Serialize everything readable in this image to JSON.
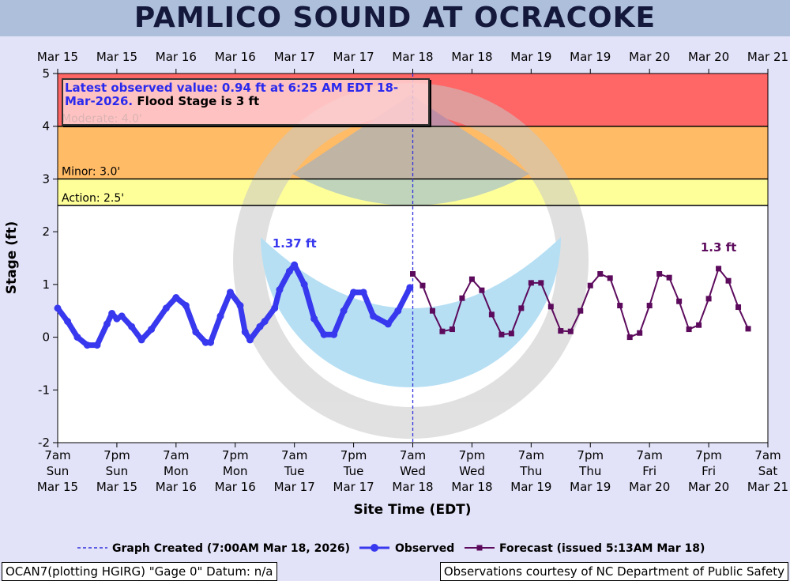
{
  "chart_data": {
    "type": "line",
    "title": "PAMLICO SOUND AT OCRACOKE",
    "y_label": "Stage (ft)",
    "x_label": "Site Time (EDT)",
    "ylim": [
      -2,
      5
    ],
    "yticks": [
      -2,
      -1,
      0,
      1,
      2,
      3,
      4,
      5
    ],
    "xlim": [
      "Mar 15 07:00",
      "Mar 21 07:00"
    ],
    "xticks": [
      {
        "value": "Mar 15 07:00",
        "label": [
          "7am",
          "Sun",
          "Mar 15"
        ]
      },
      {
        "value": "Mar 15 19:00",
        "label": [
          "7pm",
          "Sun",
          "Mar 15"
        ]
      },
      {
        "value": "Mar 16 07:00",
        "label": [
          "7am",
          "Mon",
          "Mar 16"
        ]
      },
      {
        "value": "Mar 16 19:00",
        "label": [
          "7pm",
          "Mon",
          "Mar 16"
        ]
      },
      {
        "value": "Mar 17 07:00",
        "label": [
          "7am",
          "Tue",
          "Mar 17"
        ]
      },
      {
        "value": "Mar 17 19:00",
        "label": [
          "7pm",
          "Tue",
          "Mar 17"
        ]
      },
      {
        "value": "Mar 18 07:00",
        "label": [
          "7am",
          "Wed",
          "Mar 18"
        ]
      },
      {
        "value": "Mar 18 19:00",
        "label": [
          "7pm",
          "Wed",
          "Mar 18"
        ]
      },
      {
        "value": "Mar 19 07:00",
        "label": [
          "7am",
          "Thu",
          "Mar 19"
        ]
      },
      {
        "value": "Mar 19 19:00",
        "label": [
          "7pm",
          "Thu",
          "Mar 19"
        ]
      },
      {
        "value": "Mar 20 07:00",
        "label": [
          "7am",
          "Fri",
          "Mar 20"
        ]
      },
      {
        "value": "Mar 20 19:00",
        "label": [
          "7pm",
          "Fri",
          "Mar 20"
        ]
      },
      {
        "value": "Mar 21 07:00",
        "label": [
          "7am",
          "Sat",
          "Mar 21"
        ]
      }
    ],
    "x2ticks": [
      {
        "value": "Mar 15 07:00",
        "label": "Mar 15"
      },
      {
        "value": "Mar 15 19:00",
        "label": "Mar 15"
      },
      {
        "value": "Mar 16 07:00",
        "label": "Mar 16"
      },
      {
        "value": "Mar 16 19:00",
        "label": "Mar 16"
      },
      {
        "value": "Mar 17 07:00",
        "label": "Mar 17"
      },
      {
        "value": "Mar 17 19:00",
        "label": "Mar 17"
      },
      {
        "value": "Mar 18 07:00",
        "label": "Mar 18"
      },
      {
        "value": "Mar 18 19:00",
        "label": "Mar 18"
      },
      {
        "value": "Mar 19 07:00",
        "label": "Mar 19"
      },
      {
        "value": "Mar 19 19:00",
        "label": "Mar 19"
      },
      {
        "value": "Mar 20 07:00",
        "label": "Mar 20"
      },
      {
        "value": "Mar 20 19:00",
        "label": "Mar 20"
      },
      {
        "value": "Mar 21 07:00",
        "label": "Mar 21"
      }
    ],
    "thresholds": [
      {
        "name": "Action: 2.5'",
        "value": 2.5,
        "color": "#ffff99"
      },
      {
        "name": "Minor: 3.0'",
        "value": 3.0,
        "color": "#ffbb66"
      },
      {
        "name": "Moderate: 4.0'",
        "value": 4.0,
        "color": "#ff6666"
      }
    ],
    "annotation": {
      "text": "Latest observed value: 0.94 ft at 6:25 AM EDT 18-Mar-2026.",
      "note": "Flood Stage is 3 ft"
    },
    "created_line": {
      "x": "Mar 18 07:00",
      "label": "Graph Created (7:00AM Mar 18, 2026)",
      "color": "#3333dd"
    },
    "series": [
      {
        "name": "Observed",
        "color": "#3838ee",
        "x": [
          "Mar 15 07:00",
          "Mar 15 09:00",
          "Mar 15 11:00",
          "Mar 15 13:00",
          "Mar 15 15:00",
          "Mar 15 17:00",
          "Mar 15 18:00",
          "Mar 15 19:00",
          "Mar 15 20:00",
          "Mar 15 22:00",
          "Mar 16 00:00",
          "Mar 16 02:00",
          "Mar 16 05:00",
          "Mar 16 07:00",
          "Mar 16 09:00",
          "Mar 16 11:00",
          "Mar 16 13:00",
          "Mar 16 14:00",
          "Mar 16 16:00",
          "Mar 16 18:00",
          "Mar 16 20:00",
          "Mar 16 21:00",
          "Mar 16 22:00",
          "Mar 17 00:00",
          "Mar 17 01:00",
          "Mar 17 03:00",
          "Mar 17 04:00",
          "Mar 17 06:00",
          "Mar 17 07:00",
          "Mar 17 09:00",
          "Mar 17 11:00",
          "Mar 17 13:00",
          "Mar 17 15:00",
          "Mar 17 17:00",
          "Mar 17 19:00",
          "Mar 17 21:00",
          "Mar 17 23:00",
          "Mar 18 02:00",
          "Mar 18 04:00",
          "Mar 18 06:25"
        ],
        "values": [
          0.55,
          0.3,
          0.0,
          -0.15,
          -0.15,
          0.25,
          0.45,
          0.35,
          0.4,
          0.2,
          -0.05,
          0.15,
          0.55,
          0.75,
          0.6,
          0.1,
          -0.1,
          -0.1,
          0.4,
          0.85,
          0.6,
          0.1,
          -0.05,
          0.2,
          0.3,
          0.55,
          0.9,
          1.25,
          1.37,
          1.0,
          0.35,
          0.05,
          0.05,
          0.5,
          0.85,
          0.85,
          0.4,
          0.25,
          0.5,
          0.94
        ],
        "value_labels": [
          null,
          null,
          null,
          null,
          null,
          null,
          null,
          null,
          null,
          null,
          null,
          null,
          null,
          null,
          null,
          null,
          null,
          null,
          null,
          null,
          null,
          null,
          null,
          null,
          null,
          null,
          null,
          null,
          "1.37 ft",
          null,
          null,
          null,
          null,
          null,
          null,
          null,
          null,
          null,
          null,
          null
        ]
      },
      {
        "name": "Forecast (issued 5:13AM Mar 18)",
        "color": "#5c0a5c",
        "x": [
          "Mar 18 07:00",
          "Mar 18 09:00",
          "Mar 18 11:00",
          "Mar 18 13:00",
          "Mar 18 15:00",
          "Mar 18 17:00",
          "Mar 18 19:00",
          "Mar 18 21:00",
          "Mar 18 23:00",
          "Mar 19 01:00",
          "Mar 19 03:00",
          "Mar 19 05:00",
          "Mar 19 07:00",
          "Mar 19 09:00",
          "Mar 19 11:00",
          "Mar 19 13:00",
          "Mar 19 15:00",
          "Mar 19 17:00",
          "Mar 19 19:00",
          "Mar 19 21:00",
          "Mar 19 23:00",
          "Mar 20 01:00",
          "Mar 20 03:00",
          "Mar 20 05:00",
          "Mar 20 07:00",
          "Mar 20 09:00",
          "Mar 20 11:00",
          "Mar 20 13:00",
          "Mar 20 15:00",
          "Mar 20 17:00",
          "Mar 20 19:00",
          "Mar 20 21:00",
          "Mar 20 23:00",
          "Mar 21 01:00",
          "Mar 21 03:00"
        ],
        "values": [
          1.2,
          0.98,
          0.5,
          0.11,
          0.15,
          0.74,
          1.1,
          0.89,
          0.43,
          0.05,
          0.07,
          0.55,
          1.03,
          1.03,
          0.58,
          0.12,
          0.11,
          0.5,
          0.98,
          1.2,
          1.12,
          0.6,
          0.0,
          0.08,
          0.6,
          1.2,
          1.13,
          0.68,
          0.15,
          0.23,
          0.73,
          1.3,
          1.07,
          0.57,
          0.16
        ],
        "value_labels": [
          null,
          null,
          null,
          null,
          null,
          null,
          null,
          null,
          null,
          null,
          null,
          null,
          null,
          null,
          null,
          null,
          null,
          null,
          null,
          null,
          null,
          null,
          null,
          null,
          null,
          null,
          null,
          null,
          null,
          null,
          null,
          "1.3 ft",
          null,
          null,
          null
        ]
      }
    ],
    "footer_left": "OCAN7(plotting HGIRG) \"Gage 0\" Datum: n/a",
    "footer_right": "Observations courtesy of NC Department of Public Safety"
  }
}
